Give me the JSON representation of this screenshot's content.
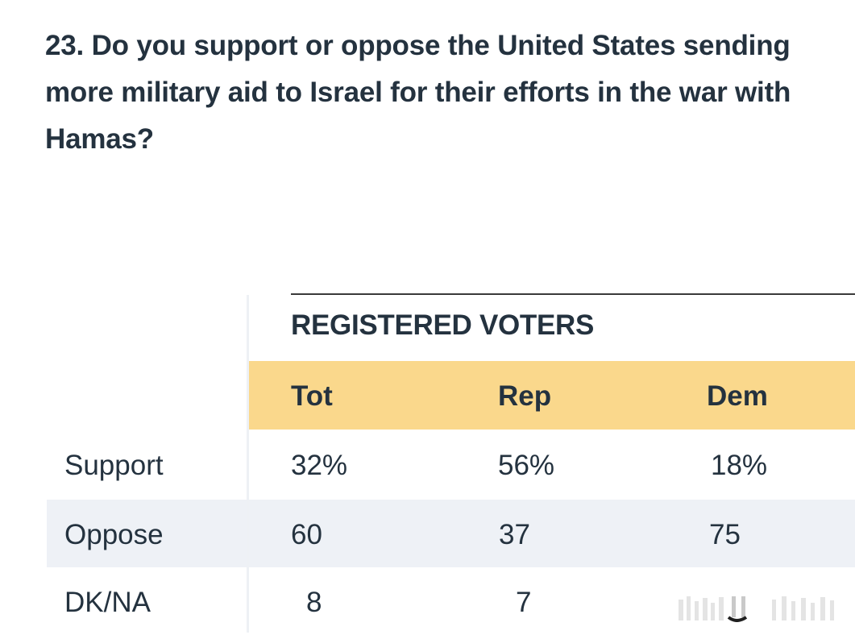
{
  "question": "23. Do you support or oppose the United States sending more military aid to Israel for their efforts in the war with Hamas?",
  "chart_data": {
    "type": "table",
    "group_header": "REGISTERED VOTERS",
    "columns": [
      "Tot",
      "Rep",
      "Dem"
    ],
    "rows": [
      {
        "label": "Support",
        "cells": [
          "32%",
          "56%",
          "18%"
        ]
      },
      {
        "label": "Oppose",
        "cells": [
          "60",
          "37",
          "75"
        ]
      },
      {
        "label": "DK/NA",
        "cells": [
          "8",
          "7",
          ""
        ]
      }
    ],
    "header_band_color": "#fad88c",
    "alt_row_color": "#eef1f6"
  }
}
